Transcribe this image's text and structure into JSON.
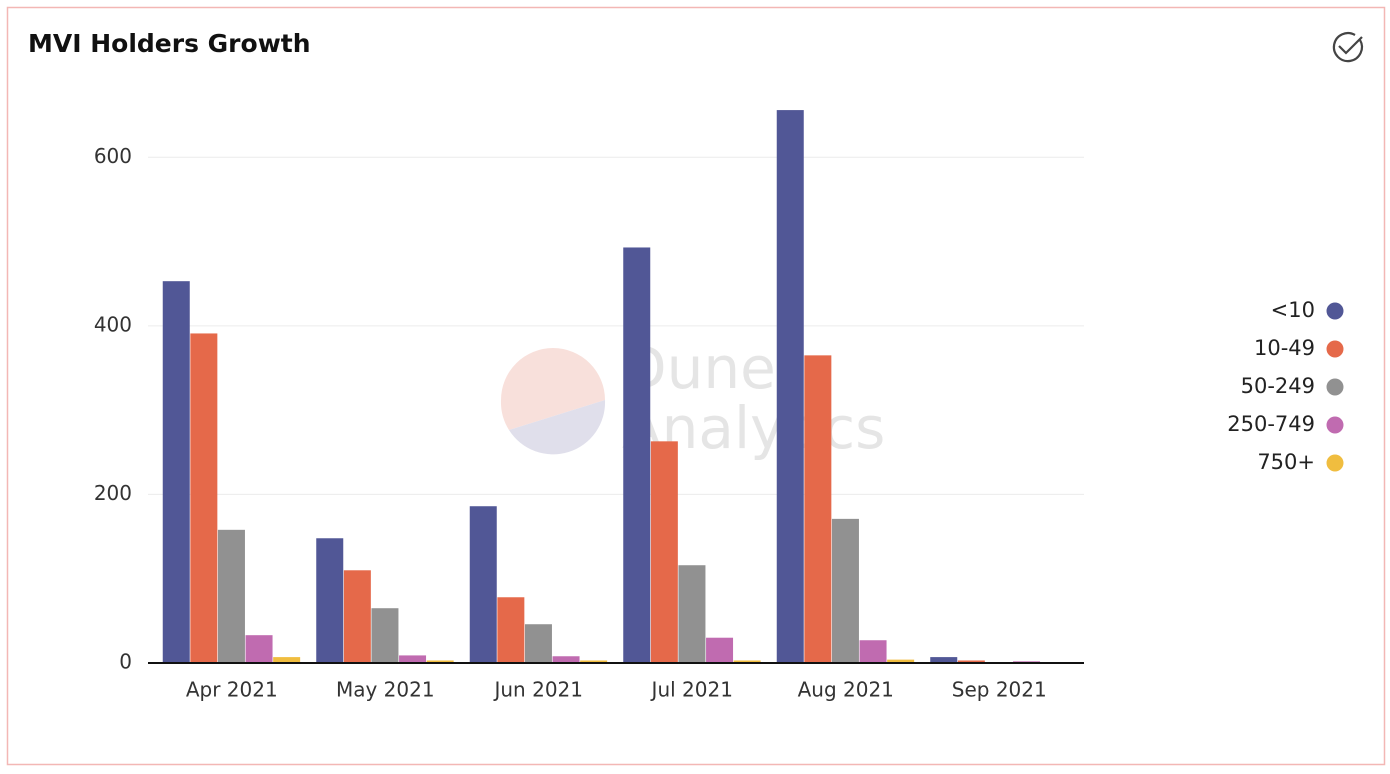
{
  "chart_data": {
    "type": "bar",
    "title": "MVI Holders Growth",
    "watermark": [
      "Dune",
      "Analytics"
    ],
    "categories": [
      "Apr 2021",
      "May 2021",
      "Jun 2021",
      "Jul 2021",
      "Aug 2021",
      "Sep 2021"
    ],
    "series": [
      {
        "name": "<10",
        "color": "#515796",
        "values": [
          453,
          148,
          186,
          493,
          656,
          7
        ]
      },
      {
        "name": "10-49",
        "color": "#e5694a",
        "values": [
          391,
          110,
          78,
          263,
          365,
          3
        ]
      },
      {
        "name": "50-249",
        "color": "#919191",
        "values": [
          158,
          65,
          46,
          116,
          171,
          1
        ]
      },
      {
        "name": "250-749",
        "color": "#c06bb0",
        "values": [
          33,
          9,
          8,
          30,
          27,
          2
        ]
      },
      {
        "name": "750+",
        "color": "#f0bd3f",
        "values": [
          7,
          3,
          3,
          3,
          4,
          1
        ]
      }
    ],
    "ylim": [
      0,
      700
    ],
    "yticks": [
      0,
      200,
      400,
      600
    ],
    "grid": true,
    "legend": "right"
  }
}
